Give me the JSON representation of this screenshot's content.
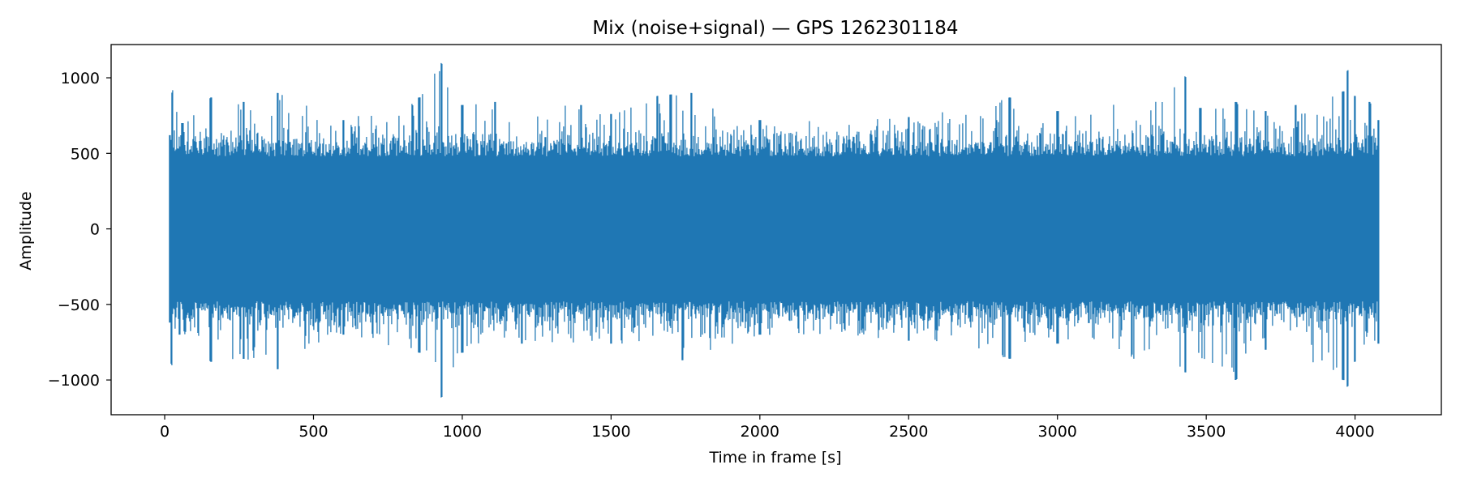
{
  "chart_data": {
    "type": "line",
    "title": "Mix (noise+signal) — GPS 1262301184",
    "xlabel": "Time in frame [s]",
    "ylabel": "Amplitude",
    "xlim": [
      -180,
      4290
    ],
    "ylim": [
      -1230,
      1220
    ],
    "x_ticks": [
      0,
      500,
      1000,
      1500,
      2000,
      2500,
      3000,
      3500,
      4000
    ],
    "x_tick_labels": [
      "0",
      "500",
      "1000",
      "1500",
      "2000",
      "2500",
      "3000",
      "3500",
      "4000"
    ],
    "y_ticks": [
      -1000,
      -500,
      0,
      500,
      1000
    ],
    "y_tick_labels": [
      "−1000",
      "−500",
      "0",
      "500",
      "1000"
    ],
    "grid": false,
    "legend": "none",
    "line_color": "#1f77b4",
    "series": [
      {
        "x_start": 16,
        "x_end": 4080,
        "envelope_upper": [
          [
            16,
            620
          ],
          [
            25,
            930
          ],
          [
            60,
            700
          ],
          [
            155,
            870
          ],
          [
            265,
            840
          ],
          [
            380,
            900
          ],
          [
            600,
            720
          ],
          [
            855,
            870
          ],
          [
            930,
            1100
          ],
          [
            1000,
            820
          ],
          [
            1110,
            840
          ],
          [
            1400,
            820
          ],
          [
            1500,
            760
          ],
          [
            1655,
            880
          ],
          [
            1700,
            890
          ],
          [
            1770,
            900
          ],
          [
            2000,
            720
          ],
          [
            2500,
            740
          ],
          [
            2840,
            870
          ],
          [
            3000,
            780
          ],
          [
            3430,
            1010
          ],
          [
            3480,
            800
          ],
          [
            3600,
            840
          ],
          [
            3700,
            780
          ],
          [
            3800,
            820
          ],
          [
            3960,
            910
          ],
          [
            3975,
            1060
          ],
          [
            4000,
            880
          ],
          [
            4050,
            840
          ],
          [
            4080,
            720
          ]
        ],
        "envelope_lower": [
          [
            16,
            -620
          ],
          [
            22,
            -920
          ],
          [
            50,
            -700
          ],
          [
            155,
            -880
          ],
          [
            265,
            -860
          ],
          [
            380,
            -930
          ],
          [
            600,
            -700
          ],
          [
            855,
            -820
          ],
          [
            930,
            -1120
          ],
          [
            1000,
            -820
          ],
          [
            1200,
            -760
          ],
          [
            1500,
            -760
          ],
          [
            1740,
            -870
          ],
          [
            2000,
            -700
          ],
          [
            2500,
            -740
          ],
          [
            2840,
            -860
          ],
          [
            3000,
            -760
          ],
          [
            3430,
            -950
          ],
          [
            3600,
            -1000
          ],
          [
            3700,
            -800
          ],
          [
            3960,
            -1000
          ],
          [
            3975,
            -1050
          ],
          [
            4000,
            -880
          ],
          [
            4080,
            -760
          ]
        ],
        "typical_amplitude": 480
      }
    ]
  }
}
